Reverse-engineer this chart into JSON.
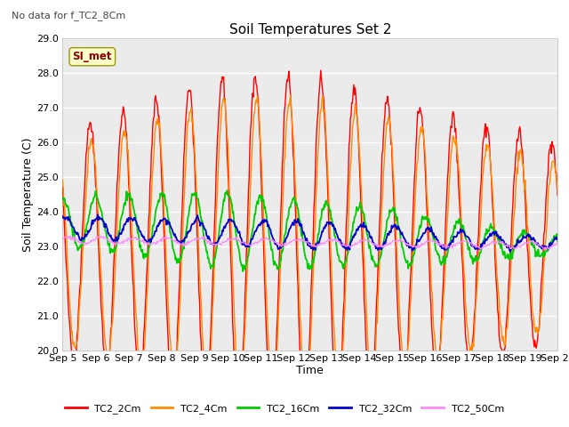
{
  "title": "Soil Temperatures Set 2",
  "subtitle": "No data for f_TC2_8Cm",
  "xlabel": "Time",
  "ylabel": "Soil Temperature (C)",
  "ylim": [
    20.0,
    29.0
  ],
  "yticks": [
    20.0,
    21.0,
    22.0,
    23.0,
    24.0,
    25.0,
    26.0,
    27.0,
    28.0,
    29.0
  ],
  "xtick_labels": [
    "Sep 5",
    "Sep 6",
    "Sep 7",
    "Sep 8",
    "Sep 9",
    "Sep 10",
    "Sep 11",
    "Sep 12",
    "Sep 13",
    "Sep 14",
    "Sep 15",
    "Sep 16",
    "Sep 17",
    "Sep 18",
    "Sep 19",
    "Sep 20"
  ],
  "series_colors": {
    "TC2_2Cm": "#ff0000",
    "TC2_4Cm": "#ff8c00",
    "TC2_16Cm": "#00cc00",
    "TC2_32Cm": "#0000cc",
    "TC2_50Cm": "#ff88ff"
  },
  "series_linewidths": {
    "TC2_2Cm": 1.0,
    "TC2_4Cm": 1.0,
    "TC2_16Cm": 1.3,
    "TC2_32Cm": 1.3,
    "TC2_50Cm": 0.9
  },
  "legend_label_SI_met": "SI_met",
  "fig_bg_color": "#ffffff",
  "plot_bg_color": "#ebebeb",
  "grid_color": "#ffffff"
}
